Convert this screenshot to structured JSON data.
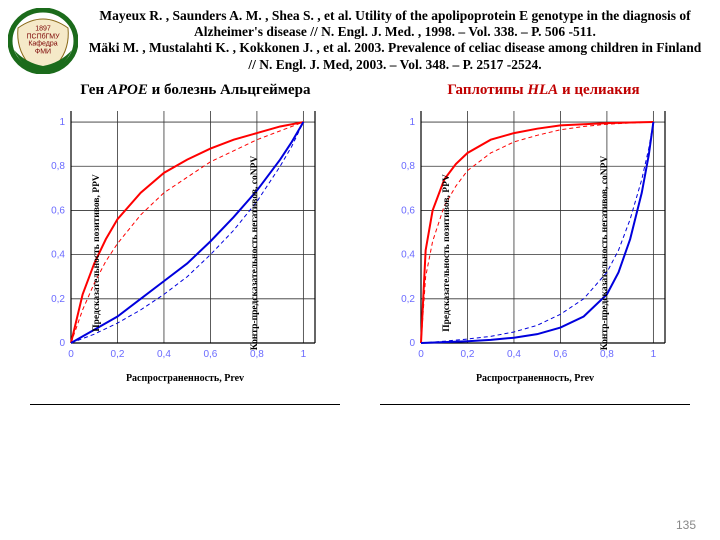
{
  "logo": {
    "year": "1897",
    "line2": "ПСПбГМУ",
    "line3": "Кафедра",
    "line4": "ФМИ"
  },
  "citation1": "Mayeux R. , Saunders A. M. , Shea S. , et al. Utility of the apolipoprotein E genotype in the diagnosis of Alzheimer's disease // N. Engl. J. Med. , 1998. – Vol. 338. – P. 506 -511.",
  "citation2": "Mäki M. , Mustalahti K. , Kokkonen J. , et al. 2003. Prevalence of celiac disease among children in Finland // N. Engl. J. Med, 2003. – Vol. 348. – P. 2517 -2524.",
  "title_left_pre": "Ген ",
  "title_left_em": "APOE",
  "title_left_post": " и болезнь Альцгеймера",
  "title_right_pre": "Гаплотипы ",
  "title_right_em": "HLA",
  "title_right_post": " и целиакия",
  "page_number": "135",
  "axes": {
    "y_left": "Предсказательность позитивов, PPV",
    "y_right": "Контр-предсказательность негативов, coNPV",
    "x": "Распространенность, Prev",
    "xlim": [
      0,
      1.05
    ],
    "ylim": [
      0,
      1.05
    ],
    "ticks": [
      0,
      0.2,
      0.4,
      0.6,
      0.8,
      1
    ],
    "tick_labels": [
      "0",
      "0,2",
      "0,4",
      "0,6",
      "0,8",
      "1"
    ]
  },
  "style": {
    "grid_color": "#333333",
    "grid_width": 0.8,
    "axis_width": 1.2,
    "background": "#ffffff",
    "tick_text_color": "#6a6aff"
  },
  "chart_left": {
    "type": "line",
    "series": [
      {
        "color": "#ff0000",
        "width": 2,
        "dash": "",
        "points": [
          [
            0,
            0
          ],
          [
            0.05,
            0.22
          ],
          [
            0.1,
            0.36
          ],
          [
            0.15,
            0.47
          ],
          [
            0.2,
            0.56
          ],
          [
            0.3,
            0.68
          ],
          [
            0.4,
            0.77
          ],
          [
            0.5,
            0.83
          ],
          [
            0.6,
            0.88
          ],
          [
            0.7,
            0.92
          ],
          [
            0.8,
            0.95
          ],
          [
            0.9,
            0.98
          ],
          [
            1,
            1
          ]
        ]
      },
      {
        "color": "#ff0000",
        "width": 1,
        "dash": "4,3",
        "points": [
          [
            0,
            0
          ],
          [
            0.05,
            0.15
          ],
          [
            0.1,
            0.27
          ],
          [
            0.15,
            0.37
          ],
          [
            0.2,
            0.45
          ],
          [
            0.3,
            0.58
          ],
          [
            0.4,
            0.68
          ],
          [
            0.5,
            0.75
          ],
          [
            0.6,
            0.82
          ],
          [
            0.7,
            0.87
          ],
          [
            0.8,
            0.92
          ],
          [
            0.9,
            0.96
          ],
          [
            1,
            1
          ]
        ]
      },
      {
        "color": "#0000dd",
        "width": 2,
        "dash": "",
        "points": [
          [
            0,
            0
          ],
          [
            0.1,
            0.06
          ],
          [
            0.2,
            0.12
          ],
          [
            0.3,
            0.2
          ],
          [
            0.4,
            0.28
          ],
          [
            0.5,
            0.36
          ],
          [
            0.6,
            0.46
          ],
          [
            0.7,
            0.57
          ],
          [
            0.8,
            0.69
          ],
          [
            0.9,
            0.83
          ],
          [
            0.95,
            0.91
          ],
          [
            1,
            1
          ]
        ]
      },
      {
        "color": "#0000dd",
        "width": 1,
        "dash": "4,3",
        "points": [
          [
            0,
            0
          ],
          [
            0.1,
            0.04
          ],
          [
            0.2,
            0.09
          ],
          [
            0.3,
            0.15
          ],
          [
            0.4,
            0.22
          ],
          [
            0.5,
            0.3
          ],
          [
            0.6,
            0.4
          ],
          [
            0.7,
            0.51
          ],
          [
            0.8,
            0.64
          ],
          [
            0.9,
            0.8
          ],
          [
            0.95,
            0.89
          ],
          [
            1,
            1
          ]
        ]
      }
    ]
  },
  "chart_right": {
    "type": "line",
    "series": [
      {
        "color": "#ff0000",
        "width": 2,
        "dash": "",
        "points": [
          [
            0,
            0
          ],
          [
            0.02,
            0.42
          ],
          [
            0.05,
            0.6
          ],
          [
            0.1,
            0.74
          ],
          [
            0.15,
            0.81
          ],
          [
            0.2,
            0.86
          ],
          [
            0.3,
            0.92
          ],
          [
            0.4,
            0.95
          ],
          [
            0.5,
            0.97
          ],
          [
            0.6,
            0.985
          ],
          [
            0.7,
            0.99
          ],
          [
            0.8,
            0.995
          ],
          [
            0.9,
            0.998
          ],
          [
            1,
            1
          ]
        ]
      },
      {
        "color": "#ff0000",
        "width": 1,
        "dash": "4,3",
        "points": [
          [
            0,
            0
          ],
          [
            0.02,
            0.3
          ],
          [
            0.05,
            0.46
          ],
          [
            0.1,
            0.62
          ],
          [
            0.15,
            0.71
          ],
          [
            0.2,
            0.78
          ],
          [
            0.3,
            0.86
          ],
          [
            0.4,
            0.91
          ],
          [
            0.5,
            0.94
          ],
          [
            0.6,
            0.965
          ],
          [
            0.7,
            0.98
          ],
          [
            0.8,
            0.99
          ],
          [
            0.9,
            0.996
          ],
          [
            1,
            1
          ]
        ]
      },
      {
        "color": "#0000dd",
        "width": 2,
        "dash": "",
        "points": [
          [
            0,
            0
          ],
          [
            0.1,
            0.004
          ],
          [
            0.2,
            0.008
          ],
          [
            0.3,
            0.014
          ],
          [
            0.4,
            0.024
          ],
          [
            0.5,
            0.04
          ],
          [
            0.6,
            0.07
          ],
          [
            0.7,
            0.12
          ],
          [
            0.8,
            0.22
          ],
          [
            0.85,
            0.32
          ],
          [
            0.9,
            0.47
          ],
          [
            0.95,
            0.68
          ],
          [
            0.98,
            0.85
          ],
          [
            1,
            1
          ]
        ]
      },
      {
        "color": "#0000dd",
        "width": 1,
        "dash": "4,3",
        "points": [
          [
            0,
            0
          ],
          [
            0.1,
            0.008
          ],
          [
            0.2,
            0.018
          ],
          [
            0.3,
            0.03
          ],
          [
            0.4,
            0.05
          ],
          [
            0.5,
            0.08
          ],
          [
            0.6,
            0.13
          ],
          [
            0.7,
            0.2
          ],
          [
            0.8,
            0.32
          ],
          [
            0.85,
            0.42
          ],
          [
            0.9,
            0.56
          ],
          [
            0.95,
            0.74
          ],
          [
            0.98,
            0.88
          ],
          [
            1,
            1
          ]
        ]
      }
    ]
  }
}
